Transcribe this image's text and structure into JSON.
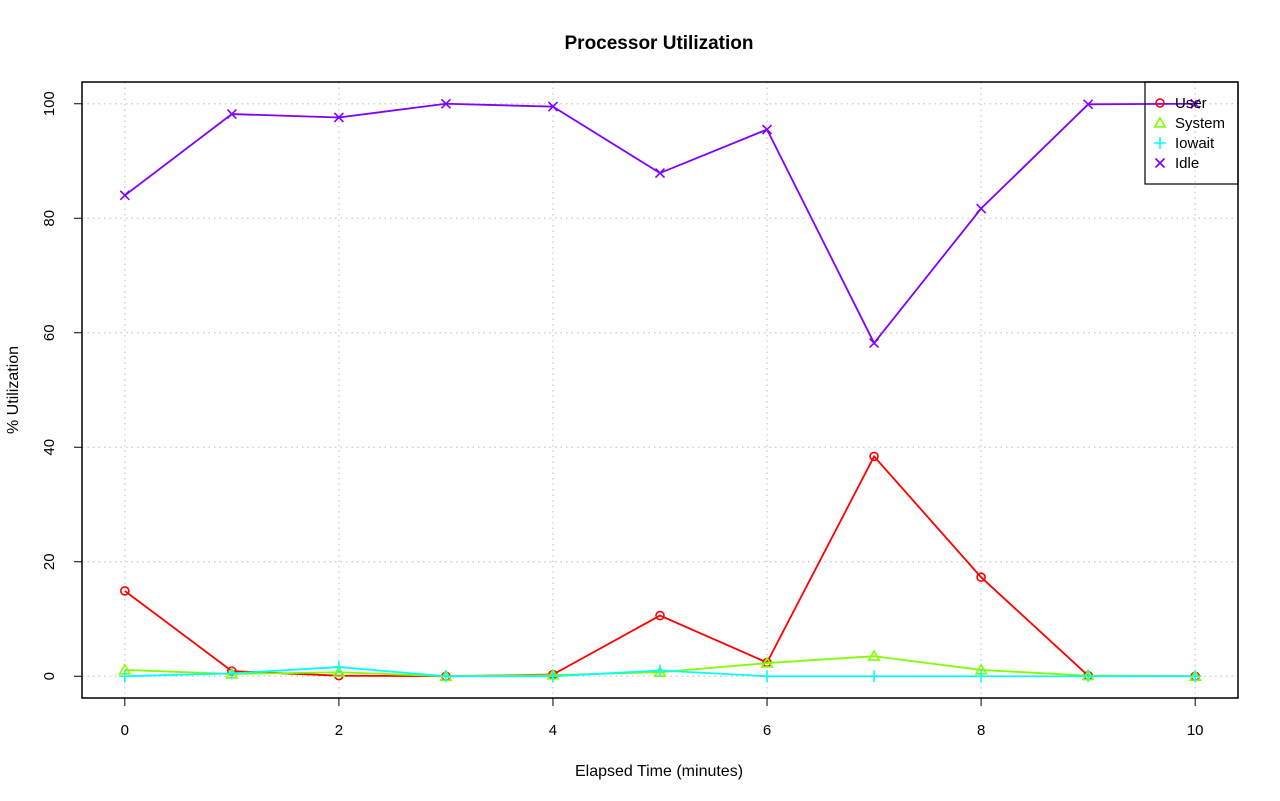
{
  "chart_data": {
    "type": "line",
    "title": "Processor Utilization",
    "xlabel": "Elapsed Time (minutes)",
    "ylabel": "% Utilization",
    "x": [
      0,
      1,
      2,
      3,
      4,
      5,
      6,
      7,
      8,
      9,
      10
    ],
    "xlim": [
      -0.4,
      10.4
    ],
    "ylim": [
      -3.8,
      103.8
    ],
    "xticks": [
      0,
      2,
      4,
      6,
      8,
      10
    ],
    "yticks": [
      0,
      20,
      40,
      60,
      80,
      100
    ],
    "grid": true,
    "legend_position": "top-right",
    "series": [
      {
        "name": "User",
        "color": "#FF0000",
        "marker": "circle",
        "values": [
          14.9,
          0.9,
          0.1,
          0.0,
          0.3,
          10.6,
          2.4,
          38.4,
          17.3,
          0.1,
          0.0
        ]
      },
      {
        "name": "System",
        "color": "#80FF00",
        "marker": "triangle",
        "values": [
          1.1,
          0.4,
          0.7,
          0.0,
          0.2,
          0.7,
          2.3,
          3.5,
          1.1,
          0.1,
          0.0
        ]
      },
      {
        "name": "Iowait",
        "color": "#00FFFF",
        "marker": "plus",
        "values": [
          0.0,
          0.5,
          1.6,
          0.0,
          0.0,
          1.0,
          0.0,
          0.0,
          0.0,
          0.0,
          0.0
        ]
      },
      {
        "name": "Idle",
        "color": "#8000FF",
        "marker": "cross",
        "values": [
          84.0,
          98.2,
          97.6,
          100.0,
          99.5,
          87.9,
          95.5,
          58.2,
          81.7,
          99.9,
          100.0
        ]
      }
    ]
  }
}
